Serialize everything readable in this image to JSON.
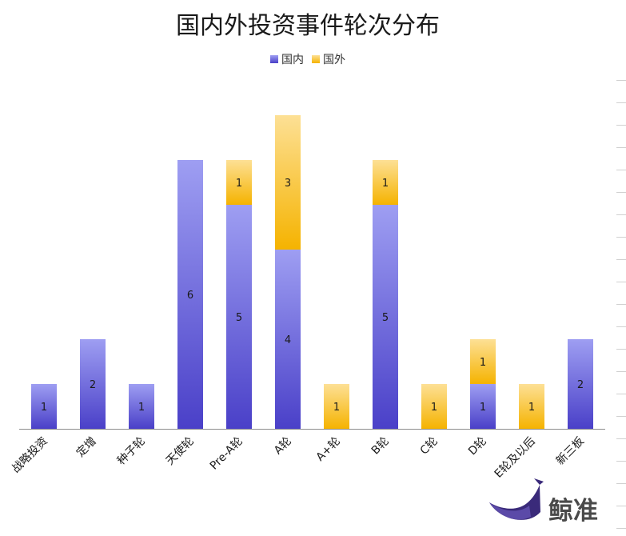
{
  "chart_data": {
    "type": "bar",
    "stacked": true,
    "title": "国内外投资事件轮次分布",
    "categories": [
      "战略投资",
      "定增",
      "种子轮",
      "天使轮",
      "Pre-A轮",
      "A轮",
      "A+轮",
      "B轮",
      "C轮",
      "D轮",
      "E轮及以后",
      "新三板"
    ],
    "series": [
      {
        "name": "国内",
        "values": [
          1,
          2,
          1,
          6,
          5,
          4,
          0,
          5,
          0,
          1,
          0,
          2
        ]
      },
      {
        "name": "国外",
        "values": [
          0,
          0,
          0,
          0,
          1,
          3,
          1,
          1,
          1,
          1,
          1,
          0
        ]
      }
    ],
    "ylim": [
      0,
      7
    ],
    "legend_position": "top",
    "grid": false
  },
  "colors": {
    "domestic_top": "#9e9ef2",
    "domestic_bottom": "#4a40c8",
    "foreign_top": "#fde095",
    "foreign_bottom": "#f5b300",
    "axis": "#8c8c8c",
    "right_ticks": "#d0d0d0"
  },
  "brand": {
    "name": "鲸准"
  }
}
